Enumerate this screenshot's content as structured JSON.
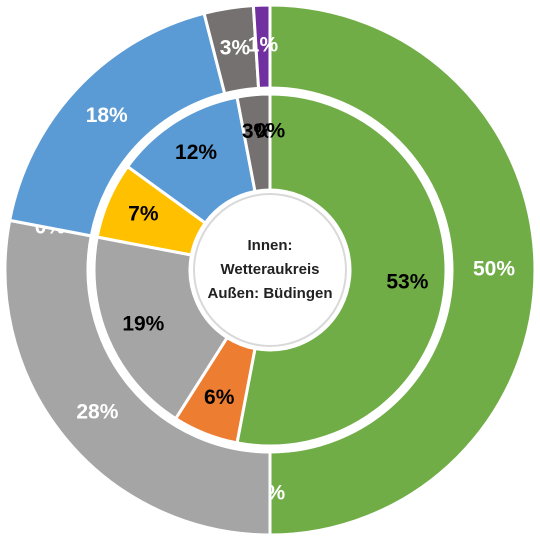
{
  "chart_data": {
    "type": "donut",
    "center_text": [
      "Innen:",
      "Wetteraukreis",
      "Außen: Büdingen"
    ],
    "colors": [
      "#70ad47",
      "#ed7d31",
      "#a5a5a5",
      "#ffc000",
      "#5b9bd5",
      "#767171",
      "#7030a0"
    ],
    "series": [
      {
        "ring": "inner",
        "label_color": "#000000",
        "values": [
          53,
          6,
          19,
          7,
          12,
          3,
          0
        ],
        "value_labels": [
          "53%",
          "6%",
          "19%",
          "7%",
          "12%",
          "3%",
          "0%"
        ]
      },
      {
        "ring": "outer",
        "label_color": "#ffffff",
        "values": [
          50,
          0,
          28,
          0,
          18,
          3,
          1
        ],
        "value_labels": [
          "50%",
          "0%",
          "28%",
          "0%",
          "18%",
          "3%",
          "1%"
        ]
      }
    ]
  }
}
